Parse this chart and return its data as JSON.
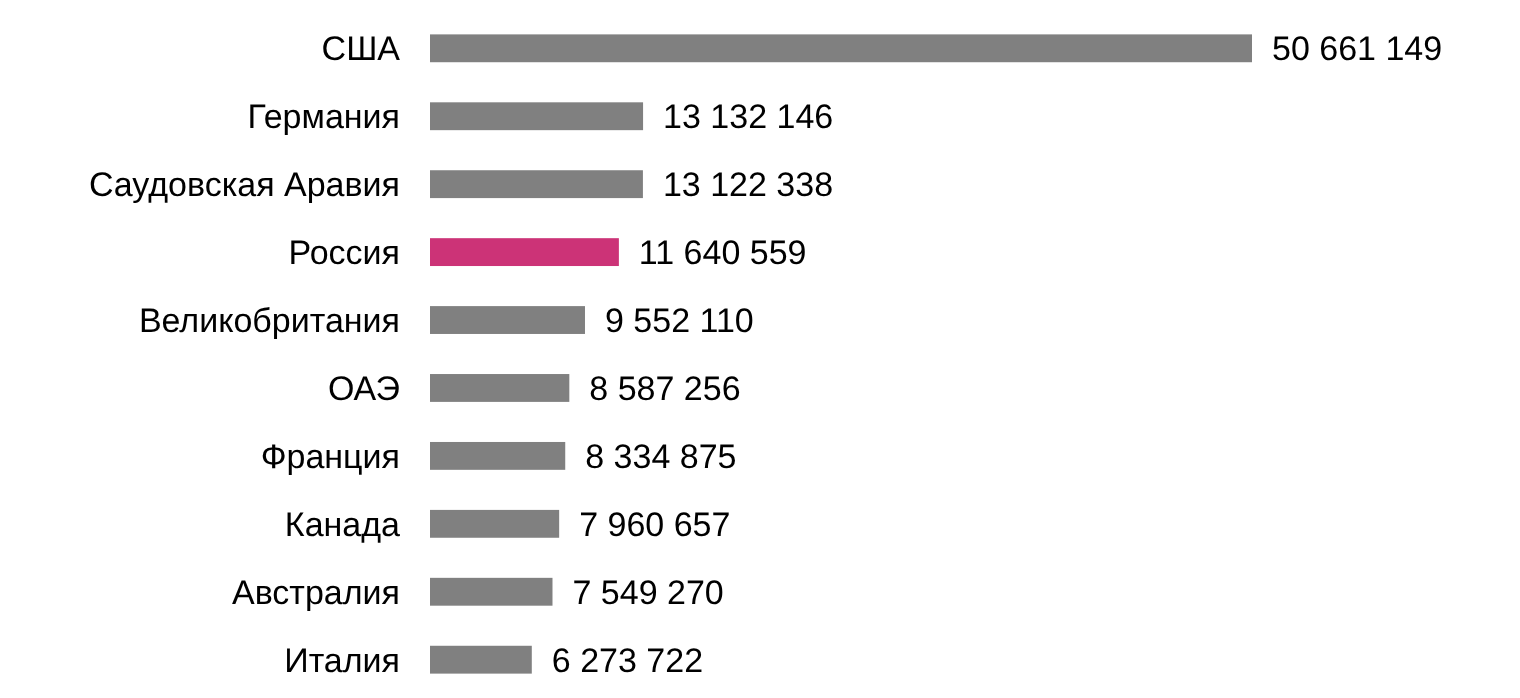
{
  "chart_data": {
    "type": "bar",
    "orientation": "horizontal",
    "categories": [
      "США",
      "Германия",
      "Саудовская Аравия",
      "Россия",
      "Великобритания",
      "ОАЭ",
      "Франция",
      "Канада",
      "Австралия",
      "Италия"
    ],
    "values": [
      50661149,
      13132146,
      13122338,
      11640559,
      9552110,
      8587256,
      8334875,
      7960657,
      7549270,
      6273722
    ],
    "colors": [
      "#808080",
      "#808080",
      "#808080",
      "#cc3377",
      "#808080",
      "#808080",
      "#808080",
      "#808080",
      "#808080",
      "#808080"
    ],
    "value_labels": [
      "50 661 149",
      "13 132 146",
      "13 122 338",
      "11 640 559",
      "9 552 110",
      "8 587 256",
      "8 334 875",
      "7 960 657",
      "7 549 270",
      "6 273 722"
    ]
  }
}
